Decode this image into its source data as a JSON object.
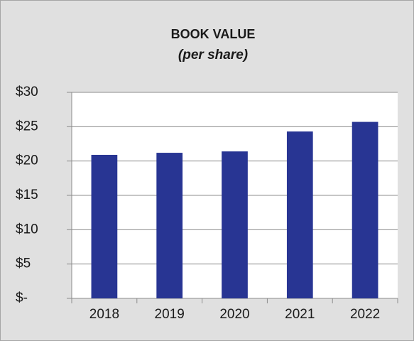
{
  "chart_data": {
    "type": "bar",
    "title": "BOOK VALUE",
    "subtitle": "(per share)",
    "categories": [
      "2018",
      "2019",
      "2020",
      "2021",
      "2022"
    ],
    "values": [
      20.9,
      21.2,
      21.4,
      24.3,
      25.7
    ],
    "color": "#283593",
    "ylim": [
      0,
      30
    ],
    "yticks": [
      {
        "value": 0,
        "label": "$-"
      },
      {
        "value": 5,
        "label": "$5"
      },
      {
        "value": 10,
        "label": "$10"
      },
      {
        "value": 15,
        "label": "$15"
      },
      {
        "value": 20,
        "label": "$20"
      },
      {
        "value": 25,
        "label": "$25"
      },
      {
        "value": 30,
        "label": "$30"
      }
    ],
    "grid": true
  }
}
